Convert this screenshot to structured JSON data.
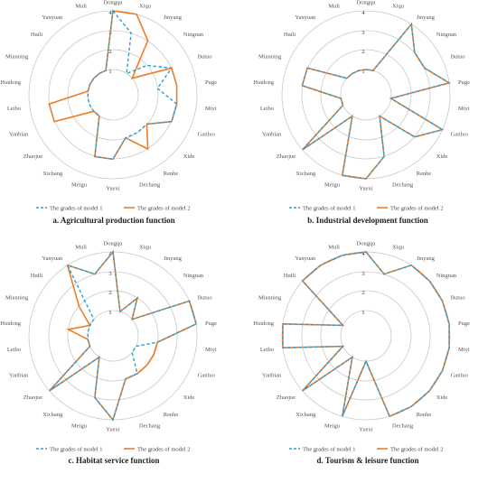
{
  "chart_data": [
    {
      "type": "radar",
      "title": "a.  Agricultural production function",
      "categories": [
        "Dongqu",
        "Xiqu",
        "Jinyang",
        "Ningnan",
        "Butuo",
        "Puge",
        "Miyi",
        "Ganluo",
        "Xide",
        "Renhe",
        "Dechang",
        "Yuexi",
        "Meigu",
        "Xichang",
        "Zhaojue",
        "Yanbian",
        "Leibo",
        "Huidong",
        "Mianning",
        "Huili",
        "Yanyuan",
        "Muli"
      ],
      "ticks": [
        "1",
        "2",
        "3",
        "4"
      ],
      "rlim": [
        1,
        4
      ],
      "series": [
        {
          "name": "The grades of  model 1",
          "style": "dashed",
          "color": "#2a9fd6",
          "values": [
            4,
            3,
            1,
            2,
            3,
            2,
            3,
            3,
            2,
            2,
            2,
            3,
            3,
            1,
            1,
            1,
            1,
            1,
            1,
            1,
            1,
            1
          ]
        },
        {
          "name": "The grades of  model 2",
          "style": "solid",
          "color": "#f07c24",
          "values": [
            4,
            4,
            3,
            1,
            3,
            3,
            3,
            3,
            2,
            3,
            2,
            3,
            3,
            1,
            1,
            3,
            3,
            1,
            1,
            1,
            1,
            1
          ]
        }
      ]
    },
    {
      "type": "radar",
      "title": "b.  Industrial development function",
      "categories": [
        "Dongqu",
        "Xiqu",
        "Jinyang",
        "Ningnan",
        "Butuo",
        "Puge",
        "Miyi",
        "Ganluo",
        "Xide",
        "Renhe",
        "Dechang",
        "Yuexi",
        "Meigu",
        "Xichang",
        "Zhaojue",
        "Yanbian",
        "Leibo",
        "Huidong",
        "Mianning",
        "Huili",
        "Yanyuan",
        "Muli"
      ],
      "ticks": [
        "1",
        "2",
        "3",
        "4"
      ],
      "rlim": [
        1,
        4
      ],
      "series": [
        {
          "name": "The grades of  model 1",
          "style": "dashed",
          "color": "#2a9fd6",
          "values": [
            1,
            1,
            4,
            3,
            3,
            4,
            1,
            4,
            3,
            1,
            3,
            4,
            4,
            1,
            4,
            1,
            1,
            3,
            3,
            1,
            1,
            1
          ]
        },
        {
          "name": "The grades of  model 2",
          "style": "solid",
          "color": "#f07c24",
          "values": [
            1,
            1,
            4,
            3,
            3,
            4,
            1,
            4,
            3,
            1,
            3,
            4,
            4,
            1,
            4,
            1,
            1,
            3,
            3,
            1,
            1,
            1
          ]
        }
      ]
    },
    {
      "type": "radar",
      "title": "c.  Habitat service function",
      "categories": [
        "Dongqu",
        "Xiqu",
        "Jinyang",
        "Ningnan",
        "Butuo",
        "Puge",
        "Miyi",
        "Ganluo",
        "Xide",
        "Renhe",
        "Dechang",
        "Yuexi",
        "Meigu",
        "Xichang",
        "Zhaojue",
        "Yanbian",
        "Leibo",
        "Huidong",
        "Mianning",
        "Huili",
        "Yanyuan",
        "Muli"
      ],
      "ticks": [
        "1",
        "2",
        "3",
        "4"
      ],
      "rlim": [
        1,
        4
      ],
      "series": [
        {
          "name": "The grades of  model 1",
          "style": "dashed",
          "color": "#2a9fd6",
          "values": [
            4,
            1,
            2,
            1,
            4,
            4,
            2,
            1,
            1,
            2,
            2,
            4,
            3,
            1,
            4,
            1,
            1,
            1,
            1,
            1,
            4,
            3
          ]
        },
        {
          "name": "The grades of  model 2",
          "style": "solid",
          "color": "#f07c24",
          "values": [
            4,
            1,
            2,
            1,
            4,
            4,
            2,
            2,
            2,
            2,
            2,
            4,
            3,
            1,
            4,
            1,
            1,
            2,
            1,
            2,
            4,
            3
          ]
        }
      ]
    },
    {
      "type": "radar",
      "title": "d.  Tourism & leisure function",
      "categories": [
        "Dongqu",
        "Xiqu",
        "Jinyang",
        "Ningnan",
        "Butuo",
        "Puge",
        "Miyi",
        "Ganluo",
        "Xide",
        "Renhe",
        "Dechang",
        "Yuexi",
        "Meigu",
        "Xichang",
        "Zhaojue",
        "Yanbian",
        "Leibo",
        "Huidong",
        "Mianning",
        "Huili",
        "Yanyuan",
        "Muli"
      ],
      "ticks": [
        "1",
        "2",
        "3",
        "4"
      ],
      "rlim": [
        1,
        4
      ],
      "series": [
        {
          "name": "The grades of  model 1",
          "style": "dashed",
          "color": "#2a9fd6",
          "values": [
            4,
            3,
            4,
            4,
            4,
            4,
            4,
            4,
            4,
            4,
            4,
            1,
            4,
            1,
            4,
            1,
            4,
            4,
            1,
            4,
            4,
            4
          ]
        },
        {
          "name": "The grades of  model 2",
          "style": "solid",
          "color": "#f07c24",
          "values": [
            4,
            3,
            4,
            4,
            4,
            4,
            4,
            4,
            4,
            4,
            4,
            1,
            4,
            1,
            4,
            1,
            4,
            4,
            1,
            4,
            4,
            4
          ]
        }
      ]
    }
  ]
}
